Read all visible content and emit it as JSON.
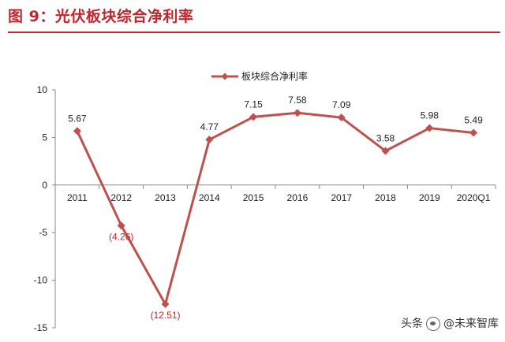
{
  "figure_title": "图 9：光伏板块综合净利率",
  "colors": {
    "series": "#c0504d",
    "title": "#c0272d",
    "axis": "#888888"
  },
  "watermark": {
    "prefix": "头条",
    "brand": "@未来智库"
  },
  "chart_data": {
    "type": "line",
    "x": [
      "2011",
      "2012",
      "2013",
      "2014",
      "2015",
      "2016",
      "2017",
      "2018",
      "2019",
      "2020Q1"
    ],
    "series": [
      {
        "name": "板块综合净利率",
        "values": [
          5.67,
          -4.26,
          -12.51,
          4.77,
          7.15,
          7.58,
          7.09,
          3.58,
          5.98,
          5.49
        ],
        "labels": [
          "5.67",
          "(4.26)",
          "(12.51)",
          "4.77",
          "7.15",
          "7.58",
          "7.09",
          "3.58",
          "5.98",
          "5.49"
        ]
      }
    ],
    "y_ticks": [
      10,
      5,
      0,
      -5,
      -10,
      -15
    ],
    "ylim": [
      -15,
      10
    ],
    "grid": false,
    "legend": "top-center",
    "marker": "diamond"
  }
}
